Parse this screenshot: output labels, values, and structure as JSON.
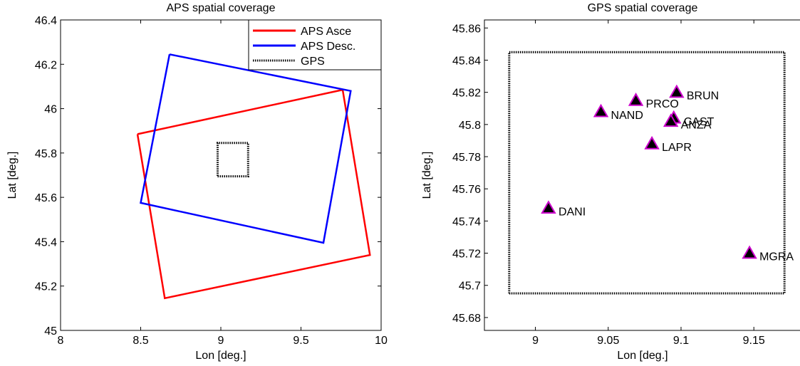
{
  "chart_data": [
    {
      "type": "line",
      "title": "APS spatial coverage",
      "xlabel": "Lon [deg.]",
      "ylabel": "Lat [deg.]",
      "xlim": [
        8,
        10
      ],
      "ylim": [
        45,
        46.4
      ],
      "xticks": [
        8,
        8.5,
        9,
        9.5,
        10
      ],
      "yticks": [
        45,
        45.2,
        45.4,
        45.6,
        45.8,
        46,
        46.2,
        46.4
      ],
      "xtick_labels": [
        "8",
        "8.5",
        "9",
        "9.5",
        "10"
      ],
      "ytick_labels": [
        "45",
        "45.2",
        "45.4",
        "45.6",
        "45.8",
        "46",
        "46.2",
        "46.4"
      ],
      "grid": false,
      "legend_position": "top-right",
      "series": [
        {
          "name": "APS Asce",
          "color": "#ff0000",
          "style": "solid",
          "x": [
            8.48,
            9.76,
            9.93,
            8.65,
            8.48
          ],
          "y": [
            45.885,
            46.085,
            45.34,
            45.145,
            45.885
          ]
        },
        {
          "name": "APS Desc.",
          "color": "#0000ff",
          "style": "solid",
          "x": [
            8.68,
            9.81,
            9.64,
            8.5,
            8.68
          ],
          "y": [
            46.245,
            46.08,
            45.395,
            45.575,
            46.245
          ]
        },
        {
          "name": "GPS",
          "color": "#000000",
          "style": "dotted",
          "x": [
            8.98,
            9.17,
            9.17,
            8.98,
            8.98
          ],
          "y": [
            45.695,
            45.695,
            45.845,
            45.845,
            45.695
          ]
        }
      ]
    },
    {
      "type": "scatter",
      "title": "GPS spatial coverage",
      "xlabel": "Lon [deg.]",
      "ylabel": "Lat [deg.]",
      "xlim": [
        8.965,
        9.19
      ],
      "ylim": [
        45.672,
        45.865
      ],
      "xticks": [
        9,
        9.05,
        9.1,
        9.15
      ],
      "yticks": [
        45.68,
        45.7,
        45.72,
        45.74,
        45.76,
        45.78,
        45.8,
        45.82,
        45.84,
        45.86
      ],
      "xtick_labels": [
        "9",
        "9.05",
        "9.1",
        "9.15"
      ],
      "ytick_labels": [
        "45.68",
        "45.7",
        "45.72",
        "45.74",
        "45.76",
        "45.78",
        "45.8",
        "45.82",
        "45.84",
        "45.86"
      ],
      "grid": false,
      "marker": {
        "shape": "triangle",
        "fill": "#000000",
        "edge": "#cc00cc"
      },
      "box": {
        "color": "#000000",
        "style": "dotted",
        "x": [
          8.982,
          9.171,
          9.171,
          8.982,
          8.982
        ],
        "y": [
          45.695,
          45.695,
          45.845,
          45.845,
          45.695
        ]
      },
      "stations": [
        {
          "name": "BRUN",
          "x": 9.097,
          "y": 45.82
        },
        {
          "name": "PRCO",
          "x": 9.069,
          "y": 45.815
        },
        {
          "name": "NAND",
          "x": 9.045,
          "y": 45.808
        },
        {
          "name": "CAST",
          "x": 9.095,
          "y": 45.804
        },
        {
          "name": "ANZA",
          "x": 9.093,
          "y": 45.802
        },
        {
          "name": "LAPR",
          "x": 9.08,
          "y": 45.788
        },
        {
          "name": "DANI",
          "x": 9.009,
          "y": 45.748
        },
        {
          "name": "MGRA",
          "x": 9.147,
          "y": 45.72
        }
      ]
    }
  ]
}
